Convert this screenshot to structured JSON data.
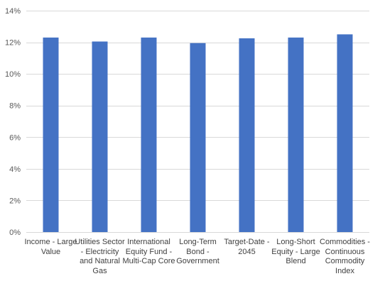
{
  "chart_data": {
    "type": "bar",
    "title": "",
    "xlabel": "",
    "ylabel": "",
    "categories": [
      "Income - Large Value",
      "Utilities Sector - Electricity and Natural Gas",
      "International Equity Fund - Multi-Cap Core",
      "Long-Term Bond - Government",
      "Target-Date - 2045",
      "Long-Short Equity - Large Blend",
      "Commodities - Continuous Commodity Index"
    ],
    "values": [
      12.3,
      12.05,
      12.3,
      11.95,
      12.25,
      12.3,
      12.5
    ],
    "ylim": [
      0,
      14
    ],
    "yticks": [
      0,
      2,
      4,
      6,
      8,
      10,
      12,
      14
    ],
    "ytick_labels": [
      "0%",
      "2%",
      "4%",
      "6%",
      "8%",
      "10%",
      "12%",
      "14%"
    ],
    "grid": true,
    "legend": "none",
    "bar_color": "#4472C4",
    "grid_color": "#D9D9D9",
    "text_color": "#595959"
  }
}
